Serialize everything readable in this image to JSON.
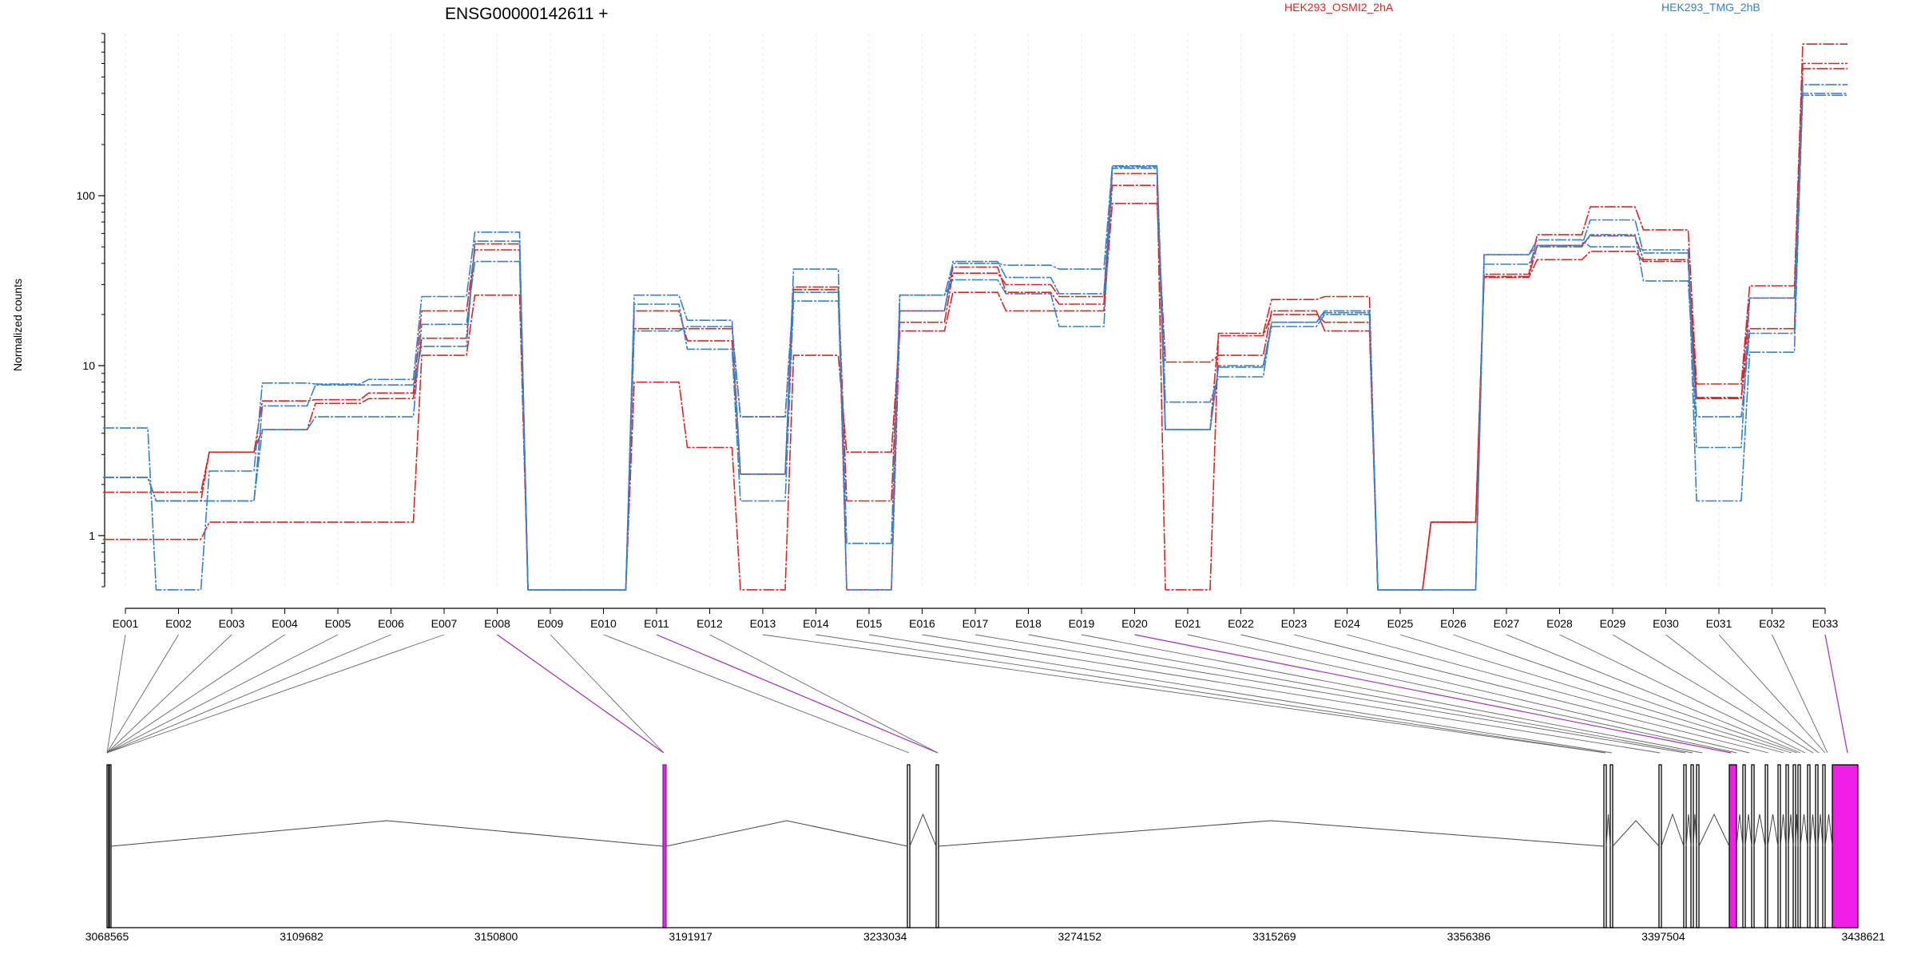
{
  "chart_data": {
    "type": "line",
    "title": "ENSG00000142611 +",
    "ylabel": "Normalized counts",
    "xlabel": "",
    "y_scale": "log",
    "y_ticks": [
      1,
      10,
      100
    ],
    "y_tick_labels": [
      "1",
      "10",
      "100"
    ],
    "ylim": [
      0.5,
      900
    ],
    "grid": true,
    "legend_position": "top",
    "categories": [
      "E001",
      "E002",
      "E003",
      "E004",
      "E005",
      "E006",
      "E007",
      "E008",
      "E009",
      "E010",
      "E011",
      "E012",
      "E013",
      "E014",
      "E015",
      "E016",
      "E017",
      "E018",
      "E019",
      "E020",
      "E021",
      "E022",
      "E023",
      "E024",
      "E025",
      "E026",
      "E027",
      "E028",
      "E029",
      "E030",
      "E031",
      "E032",
      "E033"
    ],
    "legend": [
      {
        "name": "HEK293_OSMI2_2hA",
        "color": "#d62728"
      },
      {
        "name": "HEK293_TMG_2hB",
        "color": "#3b7fc4"
      }
    ],
    "series": [
      {
        "color": "#d62728",
        "values": [
          0.95,
          0.95,
          1.2,
          1.2,
          1.2,
          1.2,
          11.5,
          26,
          0.48,
          0.48,
          8,
          3.3,
          0.48,
          11.5,
          3.1,
          16,
          27,
          21,
          21,
          90,
          10.5,
          11.5,
          21,
          16,
          0.48,
          1.2,
          33,
          42,
          47,
          41,
          6.5,
          16.5,
          560
        ]
      },
      {
        "color": "#d62728",
        "values": [
          1.8,
          1.8,
          3.1,
          6.2,
          6.3,
          6.9,
          21,
          48,
          0.48,
          0.48,
          21,
          14,
          2.3,
          29,
          1.6,
          21,
          38,
          27,
          23,
          135,
          0.48,
          15.5,
          24.5,
          25.5,
          0.48,
          1.2,
          34.5,
          59,
          86,
          63,
          7.8,
          29.5,
          780
        ]
      },
      {
        "color": "#d62728",
        "values": [
          2.2,
          1.6,
          3.1,
          4.2,
          6,
          6.4,
          14.5,
          52,
          0.48,
          0.48,
          16.5,
          16.5,
          5,
          28,
          0.48,
          18,
          35,
          30,
          25.5,
          115,
          4.2,
          15,
          20,
          18,
          0.48,
          1.2,
          33.5,
          51,
          58,
          42,
          6.4,
          25,
          600
        ]
      },
      {
        "color": "#3b7fc4",
        "values": [
          4.3,
          0.48,
          2.4,
          7.9,
          7.8,
          8.3,
          25.5,
          61,
          0.48,
          0.48,
          26,
          18.5,
          2.3,
          37,
          0.48,
          26,
          40,
          39,
          37,
          150,
          6.1,
          8.6,
          18,
          21,
          0.48,
          0.48,
          45,
          51,
          72,
          46,
          1.6,
          12,
          450
        ]
      },
      {
        "color": "#3b7fc4",
        "values": [
          2.2,
          1.6,
          1.6,
          4.2,
          5,
          5,
          17.5,
          41,
          0.48,
          0.48,
          23,
          12.5,
          1.6,
          24,
          0.9,
          26,
          32,
          26.5,
          17,
          145,
          4.2,
          9.8,
          17,
          20,
          0.48,
          0.48,
          39.5,
          50,
          59,
          31.5,
          5,
          15.5,
          400
        ]
      },
      {
        "color": "#3b7fc4",
        "values": [
          2.2,
          1.6,
          1.6,
          5.8,
          7.7,
          7.7,
          13,
          54,
          0.48,
          0.48,
          16,
          17,
          5,
          27,
          0.9,
          21,
          41,
          33,
          26.5,
          148,
          4.2,
          10,
          18,
          20.5,
          0.48,
          0.48,
          45,
          55,
          50,
          48,
          3.3,
          25,
          390
        ]
      }
    ],
    "gene_model": {
      "genomic_ticks": [
        "3068565",
        "3109682",
        "3150800",
        "3191917",
        "3233034",
        "3274152",
        "3315269",
        "3356386",
        "3397504",
        "3438621"
      ]
    }
  }
}
